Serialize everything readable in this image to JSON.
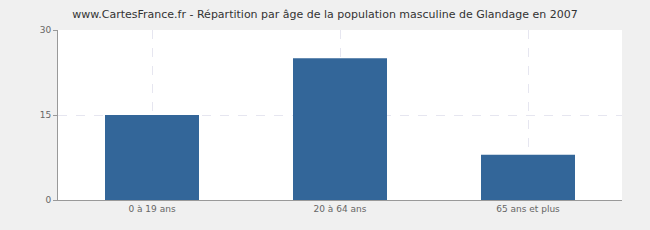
{
  "chart_data": {
    "type": "bar",
    "title": "www.CartesFrance.fr - Répartition par âge de la population masculine de Glandage en 2007",
    "categories": [
      "0 à 19 ans",
      "20 à 64 ans",
      "65 ans et plus"
    ],
    "values": [
      15,
      25,
      8
    ],
    "color": "#336699",
    "ylim": [
      0,
      30
    ],
    "yticks": [
      0,
      15,
      30
    ],
    "grid": true
  }
}
